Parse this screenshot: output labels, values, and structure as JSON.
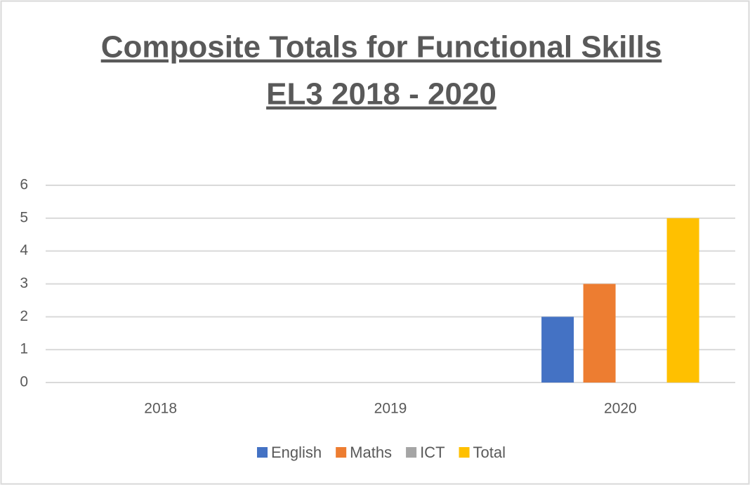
{
  "chart_data": {
    "type": "bar",
    "title": [
      "Composite Totals for Functional Skills",
      "EL3  2018 - 2020"
    ],
    "categories": [
      "2018",
      "2019",
      "2020"
    ],
    "series": [
      {
        "name": "English",
        "color": "#4472c4",
        "values": [
          0,
          0,
          2
        ]
      },
      {
        "name": "Maths",
        "color": "#ed7d31",
        "values": [
          0,
          0,
          3
        ]
      },
      {
        "name": "ICT",
        "color": "#a5a5a5",
        "values": [
          0,
          0,
          0
        ]
      },
      {
        "name": "Total",
        "color": "#ffc000",
        "values": [
          0,
          0,
          5
        ]
      }
    ],
    "ylim": [
      0,
      6
    ],
    "yticks": [
      0,
      1,
      2,
      3,
      4,
      5,
      6
    ],
    "grid": true,
    "legend": "bottom"
  }
}
